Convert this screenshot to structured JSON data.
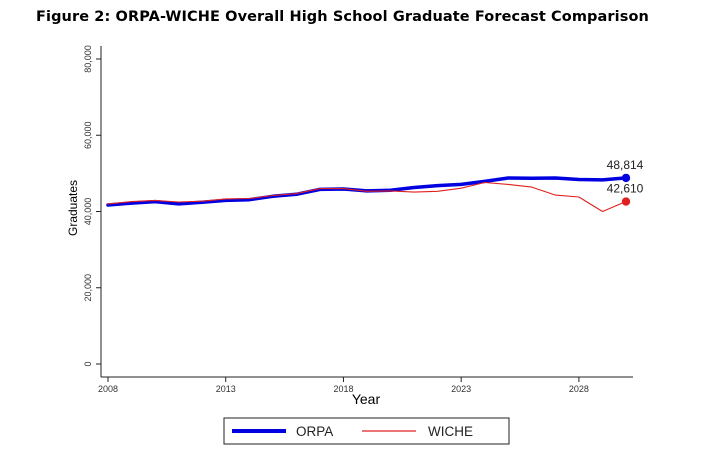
{
  "figure_title": "Figure 2: ORPA-WICHE Overall High School Graduate Forecast Comparison",
  "chart_data": {
    "type": "line",
    "title": "Figure 2: ORPA-WICHE Overall High School Graduate Forecast Comparison",
    "xlabel": "Year",
    "ylabel": "Graduates",
    "xlim": [
      2008,
      2030
    ],
    "ylim": [
      0,
      80000
    ],
    "x_ticks": [
      2008,
      2013,
      2018,
      2023,
      2028
    ],
    "x_tick_labels": [
      "2008",
      "2013",
      "2018",
      "2023",
      "2028"
    ],
    "y_ticks": [
      0,
      20000,
      40000,
      60000,
      80000
    ],
    "y_tick_labels": [
      "0",
      "20,000",
      "40,000",
      "60,000",
      "80,000"
    ],
    "grid": false,
    "legend_position": "bottom",
    "x": [
      2008,
      2009,
      2010,
      2011,
      2012,
      2013,
      2014,
      2015,
      2016,
      2017,
      2018,
      2019,
      2020,
      2021,
      2022,
      2023,
      2024,
      2025,
      2026,
      2027,
      2028,
      2029,
      2030
    ],
    "series": [
      {
        "name": "ORPA",
        "color": "#0000e0",
        "values": [
          41700,
          42200,
          42600,
          42000,
          42400,
          42900,
          43100,
          44000,
          44500,
          45800,
          45900,
          45400,
          45600,
          46300,
          46800,
          47100,
          47900,
          48800,
          48700,
          48800,
          48400,
          48300,
          48814
        ],
        "end_label": "48,814"
      },
      {
        "name": "WICHE",
        "color": "#e02020",
        "values": [
          42000,
          42600,
          42900,
          42500,
          42700,
          43300,
          43400,
          44200,
          44700,
          46000,
          46000,
          45300,
          45400,
          45100,
          45300,
          46100,
          47600,
          47100,
          46400,
          44300,
          43800,
          40000,
          42610
        ],
        "end_label": "42,610"
      }
    ]
  }
}
